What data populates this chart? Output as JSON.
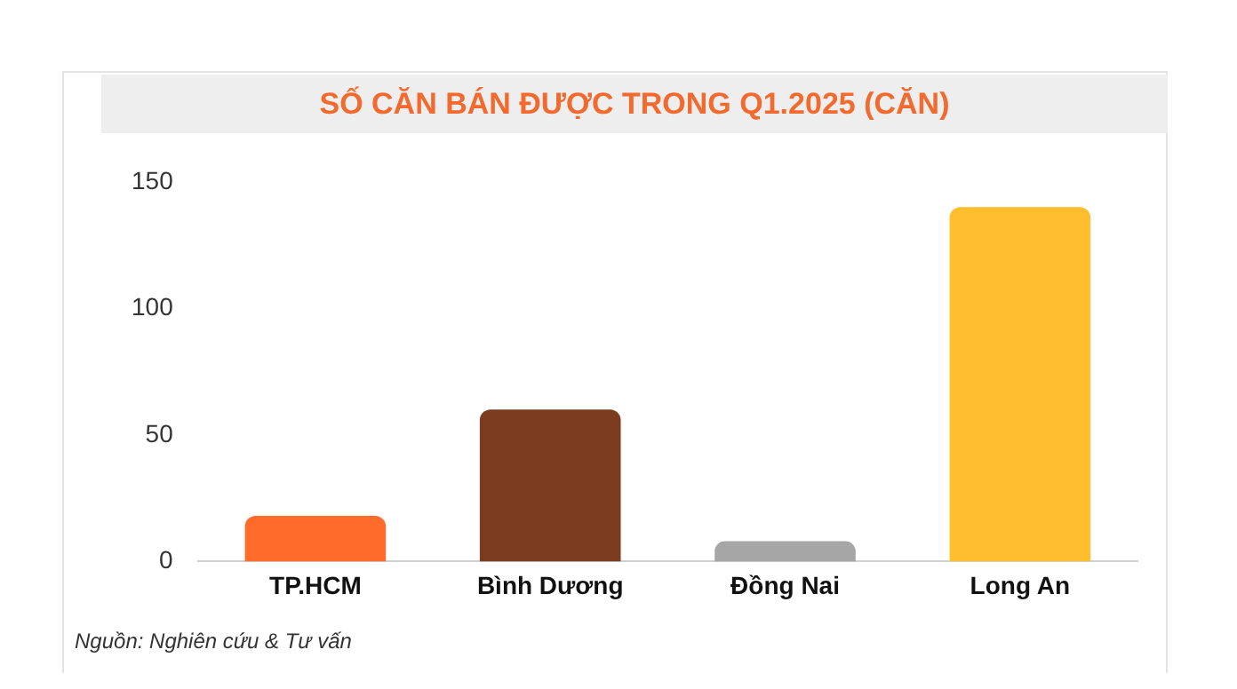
{
  "chart_data": {
    "type": "bar",
    "title": "SỐ CĂN BÁN ĐƯỢC TRONG Q1.2025 (CĂN)",
    "categories": [
      "TP.HCM",
      "Bình Dương",
      "Đồng Nai",
      "Long An"
    ],
    "values": [
      18,
      60,
      8,
      140
    ],
    "colors": [
      "#ff6b2b",
      "#7a3b1e",
      "#a6a6a6",
      "#ffbe2e"
    ],
    "ylim": [
      0,
      150
    ],
    "yticks": [
      0,
      50,
      100,
      150
    ],
    "grid": false,
    "legend": false,
    "annotations": [
      "Nguồn: Nghiên cứu & Tư vấn"
    ]
  }
}
